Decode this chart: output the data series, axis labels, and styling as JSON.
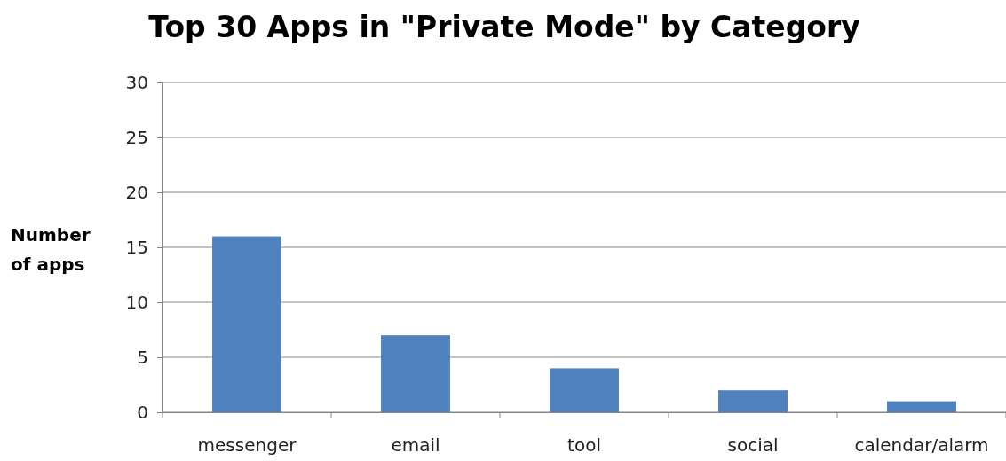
{
  "chart_data": {
    "type": "bar",
    "title": "Top 30 Apps in \"Private Mode\" by Category",
    "ylabel": "Number of apps",
    "categories": [
      "messenger",
      "email",
      "tool",
      "social",
      "calendar/alarm"
    ],
    "values": [
      16,
      7,
      4,
      2,
      1
    ],
    "color": "#4f81bd",
    "ylim": [
      0,
      30
    ],
    "yticks": [
      0,
      5,
      10,
      15,
      20,
      25,
      30
    ],
    "grid": "y"
  }
}
